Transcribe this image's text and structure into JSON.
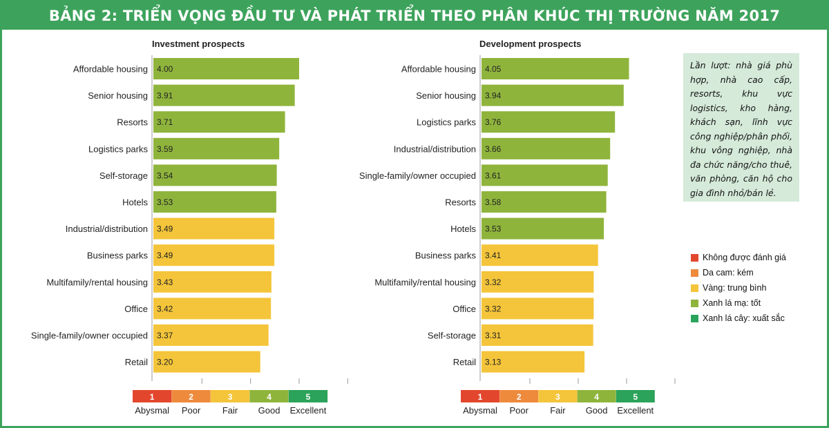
{
  "header": {
    "title": "BẢNG 2: TRIỂN VỌNG ĐẦU TƯ VÀ PHÁT TRIỂN THEO PHÂN KHÚC THỊ TRƯỜNG NĂM 2017"
  },
  "note": {
    "text": "Lần lượt: nhà giá phù hợp, nhà cao cấp, resorts, khu vực logistics, kho hàng, khách sạn, lĩnh vực công nghiệp/phân phối, khu vông nghiệp, nhà đa chức năng/cho thuê, văn phòng, căn hộ cho gia đình nhỏ/bán lẻ."
  },
  "legend": {
    "items": [
      {
        "label": "Không được đánh giá",
        "color": "#e2472e"
      },
      {
        "label": "Da cam: kém",
        "color": "#ee8a3c"
      },
      {
        "label": "Vàng: trung bình",
        "color": "#f4c53a"
      },
      {
        "label": "Xanh lá mạ: tốt",
        "color": "#8fb43c"
      },
      {
        "label": "Xanh lá cây: xuất sắc",
        "color": "#2ba35a"
      }
    ]
  },
  "colors": {
    "good": "#8fb43c",
    "fair": "#f4c53a",
    "title_bg": "#3da35c",
    "note_bg": "#d5ead9"
  },
  "chart_data": [
    {
      "type": "bar",
      "orientation": "horizontal",
      "title": "Investment prospects",
      "categories": [
        "Affordable housing",
        "Senior housing",
        "Resorts",
        "Logistics parks",
        "Self-storage",
        "Hotels",
        "Industrial/distribution",
        "Business parks",
        "Multifamily/rental housing",
        "Office",
        "Single-family/owner occupied",
        "Retail"
      ],
      "values": [
        4.0,
        3.91,
        3.71,
        3.59,
        3.54,
        3.53,
        3.49,
        3.49,
        3.43,
        3.42,
        3.37,
        3.2
      ],
      "value_labels": [
        "4.00",
        "3.91",
        "3.71",
        "3.59",
        "3.54",
        "3.53",
        "3.49",
        "3.49",
        "3.43",
        "3.42",
        "3.37",
        "3.20"
      ],
      "xlim": [
        1,
        5
      ],
      "scale": [
        {
          "num": "1",
          "label": "Abysmal",
          "color": "#e2472e"
        },
        {
          "num": "2",
          "label": "Poor",
          "color": "#ee8a3c"
        },
        {
          "num": "3",
          "label": "Fair",
          "color": "#f4c53a"
        },
        {
          "num": "4",
          "label": "Good",
          "color": "#8fb43c"
        },
        {
          "num": "5",
          "label": "Excellent",
          "color": "#2ba35a"
        }
      ]
    },
    {
      "type": "bar",
      "orientation": "horizontal",
      "title": "Development prospects",
      "categories": [
        "Affordable housing",
        "Senior housing",
        "Logistics parks",
        "Industrial/distribution",
        "Single-family/owner occupied",
        "Resorts",
        "Hotels",
        "Business parks",
        "Multifamily/rental housing",
        "Office",
        "Self-storage",
        "Retail"
      ],
      "values": [
        4.05,
        3.94,
        3.76,
        3.66,
        3.61,
        3.58,
        3.53,
        3.41,
        3.32,
        3.32,
        3.31,
        3.13
      ],
      "value_labels": [
        "4.05",
        "3.94",
        "3.76",
        "3.66",
        "3.61",
        "3.58",
        "3.53",
        "3.41",
        "3.32",
        "3.32",
        "3.31",
        "3.13"
      ],
      "xlim": [
        1,
        5
      ],
      "scale": [
        {
          "num": "1",
          "label": "Abysmal",
          "color": "#e2472e"
        },
        {
          "num": "2",
          "label": "Poor",
          "color": "#ee8a3c"
        },
        {
          "num": "3",
          "label": "Fair",
          "color": "#f4c53a"
        },
        {
          "num": "4",
          "label": "Good",
          "color": "#8fb43c"
        },
        {
          "num": "5",
          "label": "Excellent",
          "color": "#2ba35a"
        }
      ]
    }
  ]
}
